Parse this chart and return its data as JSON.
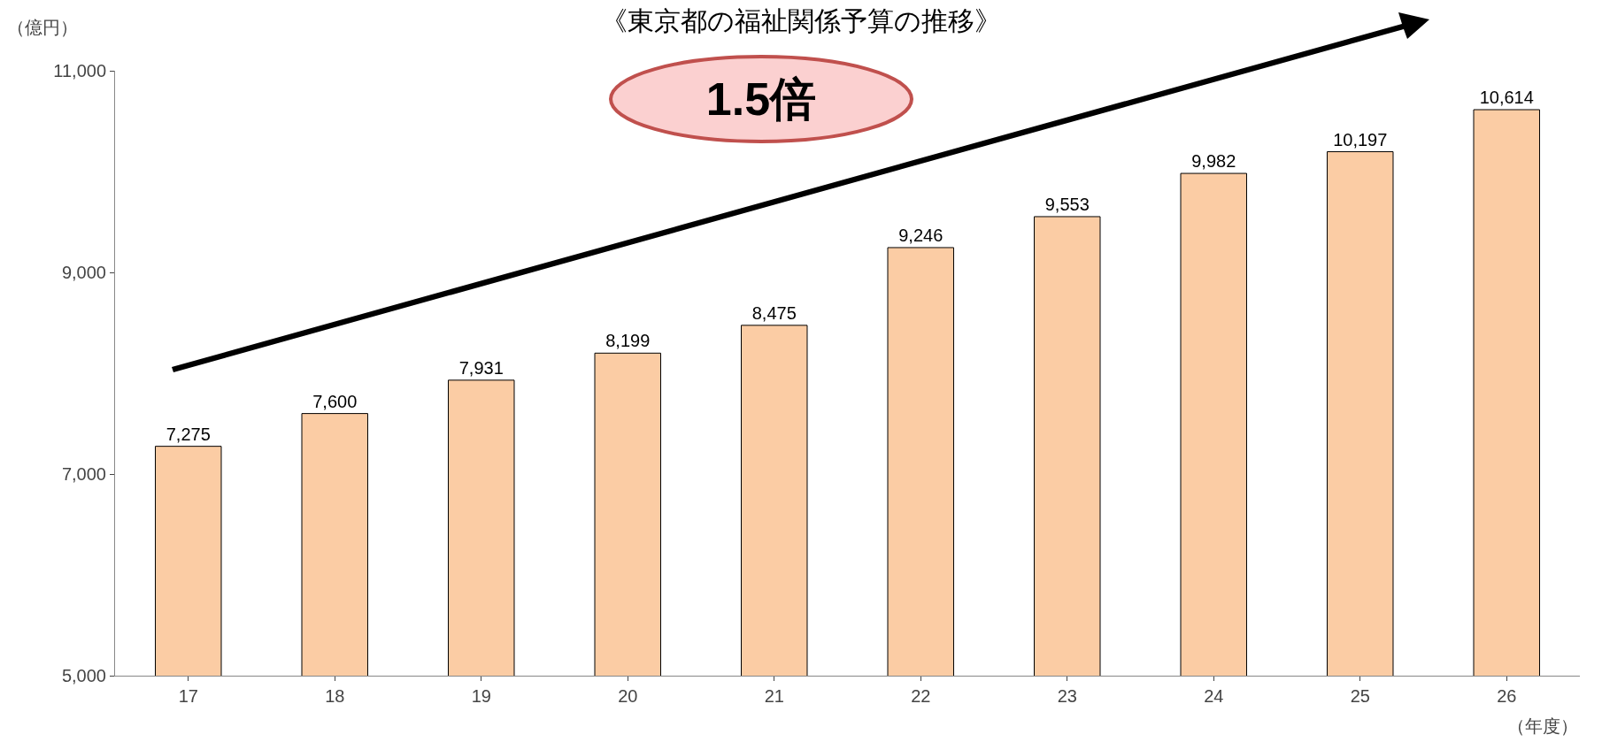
{
  "chart_data": {
    "type": "bar",
    "title": "《東京都の福祉関係予算の推移》",
    "ylabel": "（億円）",
    "xlabel": "（年度）",
    "categories": [
      "17",
      "18",
      "19",
      "20",
      "21",
      "22",
      "23",
      "24",
      "25",
      "26"
    ],
    "values": [
      7275,
      7600,
      7931,
      8199,
      8475,
      9246,
      9553,
      9982,
      10197,
      10614
    ],
    "color": "#fbcca4",
    "value_labels": [
      "7,275",
      "7,600",
      "7,931",
      "8,199",
      "8,475",
      "9,246",
      "9,553",
      "9,982",
      "10,197",
      "10,614"
    ],
    "ylim": [
      5000,
      11000
    ],
    "yticks": [
      {
        "value": 5000,
        "label": "5,000"
      },
      {
        "value": 7000,
        "label": "7,000"
      },
      {
        "value": 9000,
        "label": "9,000"
      },
      {
        "value": 11000,
        "label": "11,000"
      }
    ],
    "grid": false,
    "annotations": [
      "1.5倍"
    ]
  }
}
